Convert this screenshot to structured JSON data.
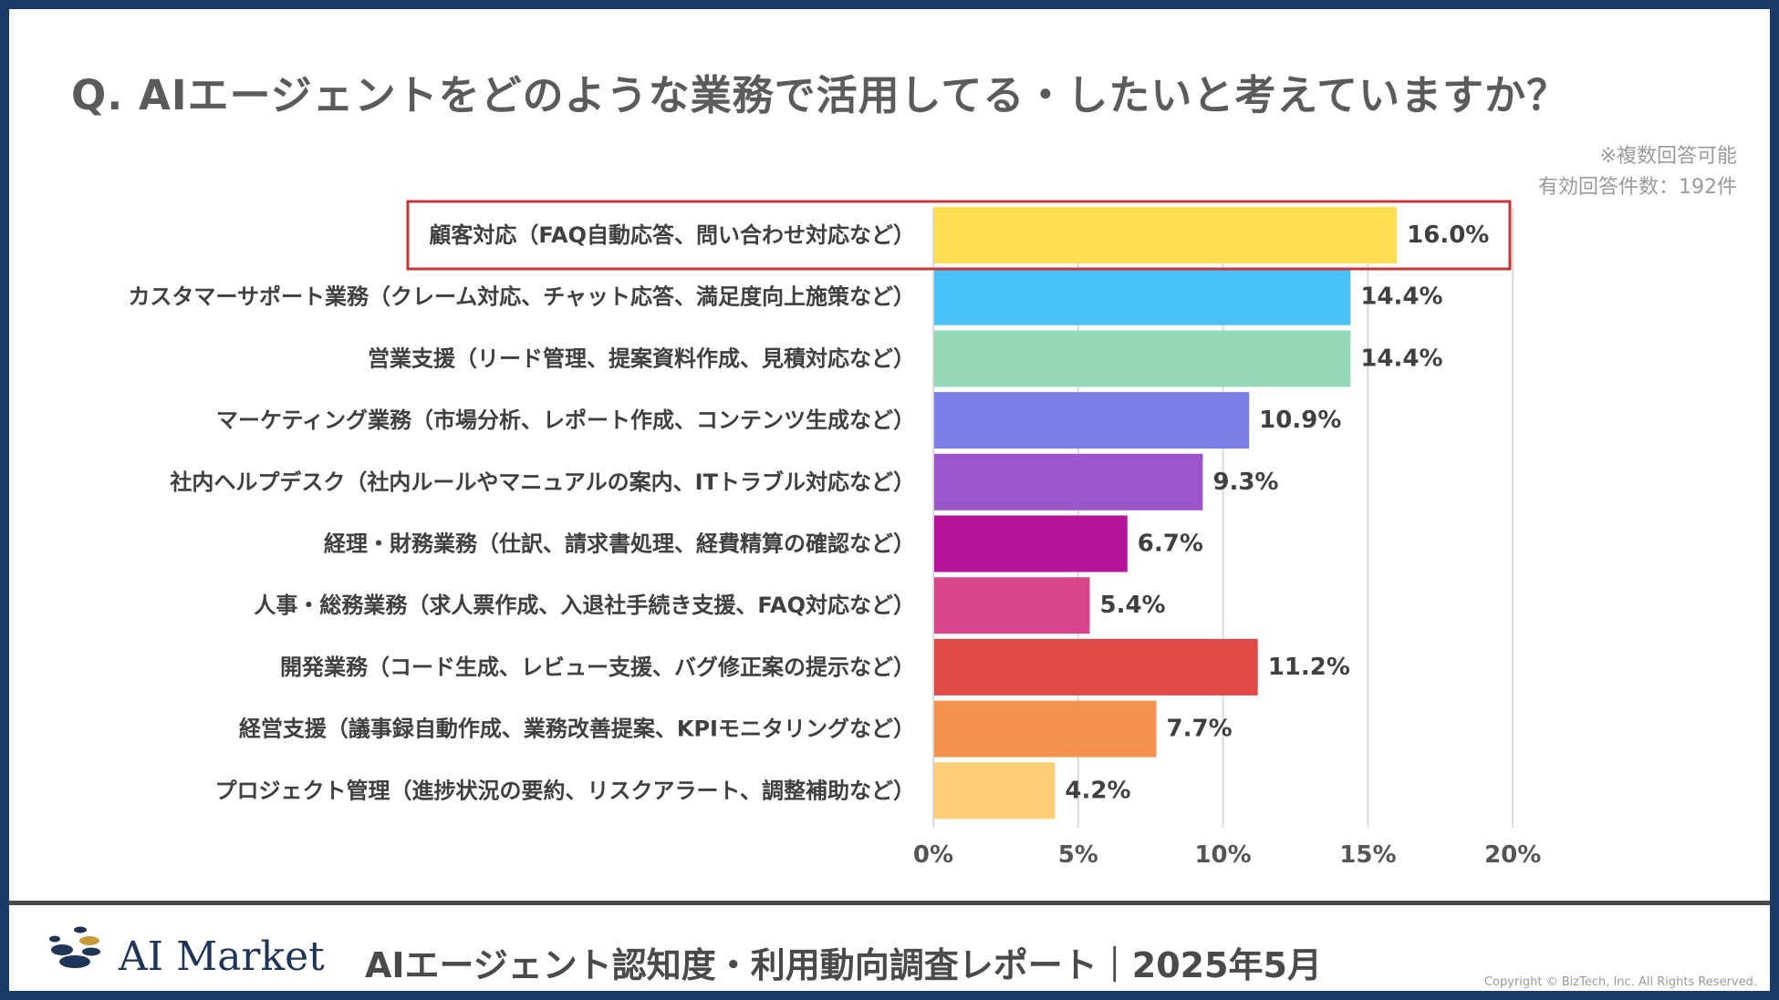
{
  "title": "Q. AIエージェントをどのような業務で活用してる・したいと考えていますか？",
  "notes": {
    "multiple": "※複数回答可能",
    "respondents": "有効回答件数：192件"
  },
  "colors": {
    "highlight_border": "#c7343a",
    "grid": "#d9d9d9",
    "label": "#404040",
    "axis_text": "#555555"
  },
  "chart_data": {
    "type": "bar",
    "orientation": "horizontal",
    "categories": [
      "顧客対応（FAQ自動応答、問い合わせ対応など）",
      "カスタマーサポート業務（クレーム対応、チャット応答、満足度向上施策など）",
      "営業支援（リード管理、提案資料作成、見積対応など）",
      "マーケティング業務（市場分析、レポート作成、コンテンツ生成など）",
      "社内ヘルプデスク（社内ルールやマニュアルの案内、ITトラブル対応など）",
      "経理・財務業務（仕訳、請求書処理、経費精算の確認など）",
      "人事・総務業務（求人票作成、入退社手続き支援、FAQ対応など）",
      "開発業務（コード生成、レビュー支援、バグ修正案の提示など）",
      "経営支援（議事録自動作成、業務改善提案、KPIモニタリングなど）",
      "プロジェクト管理（進捗状況の要約、リスクアラート、調整補助など）"
    ],
    "values": [
      16.0,
      14.4,
      14.4,
      10.9,
      9.3,
      6.7,
      5.4,
      11.2,
      7.7,
      4.2
    ],
    "value_labels": [
      "16.0%",
      "14.4%",
      "14.4%",
      "10.9%",
      "9.3%",
      "6.7%",
      "5.4%",
      "11.2%",
      "7.7%",
      "4.2%"
    ],
    "bar_colors": [
      "#ffdd55",
      "#4bc2f7",
      "#96d9b8",
      "#7c7ee5",
      "#9b56cc",
      "#b8139b",
      "#d8458a",
      "#de4a45",
      "#f5924f",
      "#ffcd73"
    ],
    "xlim": [
      0,
      20
    ],
    "xticks": [
      0,
      5,
      10,
      15,
      20
    ],
    "xtick_labels": [
      "0%",
      "5%",
      "10%",
      "15%",
      "20%"
    ],
    "highlighted_index": 0,
    "legend": "none"
  },
  "footer": {
    "logo_text": "AI Market",
    "report_title": "AIエージェント認知度・利用動向調査レポート｜2025年5月",
    "copyright": "Copyright © BizTech, Inc. All Rights Reserved."
  }
}
